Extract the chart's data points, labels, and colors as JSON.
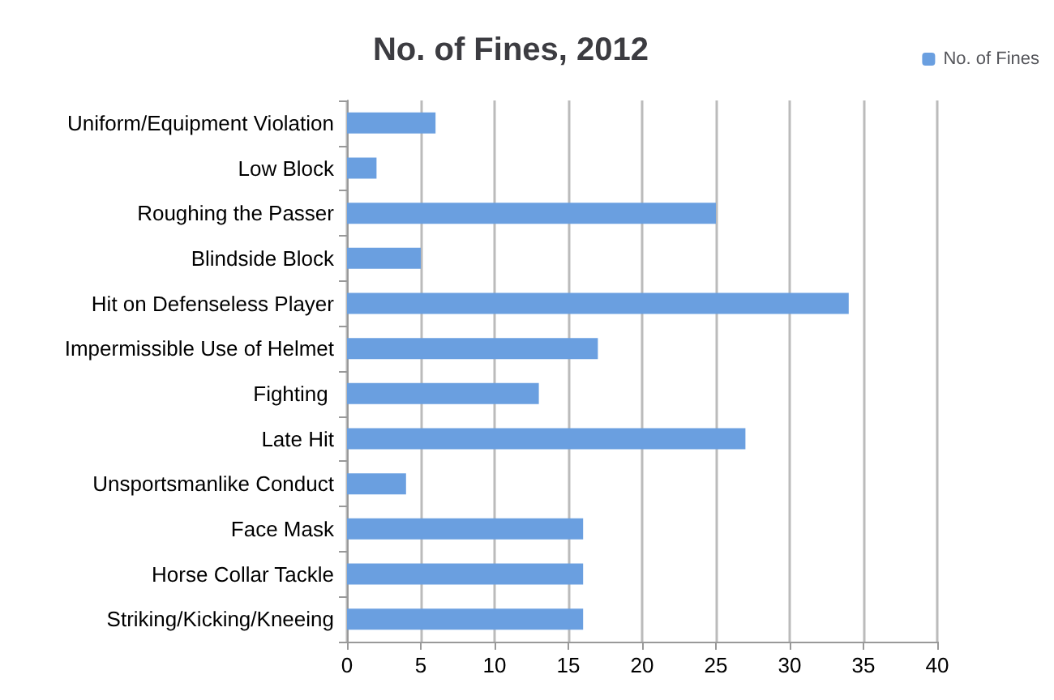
{
  "chart_data": {
    "type": "bar",
    "orientation": "horizontal",
    "title": "No. of Fines, 2012",
    "categories": [
      "Uniform/Equipment Violation",
      "Low Block",
      "Roughing the Passer",
      "Blindside Block",
      "Hit on Defenseless Player",
      "Impermissible Use of Helmet",
      "Fighting ",
      "Late Hit",
      "Unsportsmanlike Conduct",
      "Face Mask",
      "Horse Collar Tackle",
      "Striking/Kicking/Kneeing"
    ],
    "series": [
      {
        "name": "No. of Fines",
        "color": "#6a9fe0",
        "values": [
          6,
          2,
          25,
          5,
          34,
          17,
          13,
          27,
          4,
          16,
          16,
          16
        ]
      }
    ],
    "xlim": [
      0,
      40
    ],
    "xticks": [
      0,
      5,
      10,
      15,
      20,
      25,
      30,
      35,
      40
    ],
    "grid": "x",
    "legend": "top right"
  }
}
